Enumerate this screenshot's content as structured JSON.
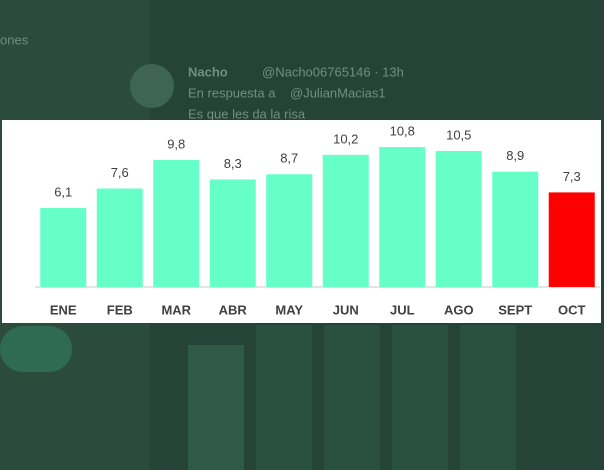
{
  "background": {
    "side_text": "ones",
    "author": "Nacho",
    "handle": "@Nacho06765146 · 13h",
    "reply_prefix": "En respuesta a",
    "reply_to": "@JulianMacias1",
    "tweet_text": "Es que les da la risa"
  },
  "chart_data": {
    "type": "bar",
    "categories": [
      "ENE",
      "FEB",
      "MAR",
      "ABR",
      "MAY",
      "JUN",
      "JUL",
      "AGO",
      "SEPT",
      "OCT"
    ],
    "values": [
      6.1,
      7.6,
      9.8,
      8.3,
      8.7,
      10.2,
      10.8,
      10.5,
      8.9,
      7.3
    ],
    "value_labels": [
      "6,1",
      "7,6",
      "9,8",
      "8,3",
      "8,7",
      "10,2",
      "10,8",
      "10,5",
      "8,9",
      "7,3"
    ],
    "colors": [
      "#66ffc8",
      "#66ffc8",
      "#66ffc8",
      "#66ffc8",
      "#66ffc8",
      "#66ffc8",
      "#66ffc8",
      "#66ffc8",
      "#66ffc8",
      "#ff0000"
    ],
    "ylim": [
      0,
      12
    ]
  }
}
